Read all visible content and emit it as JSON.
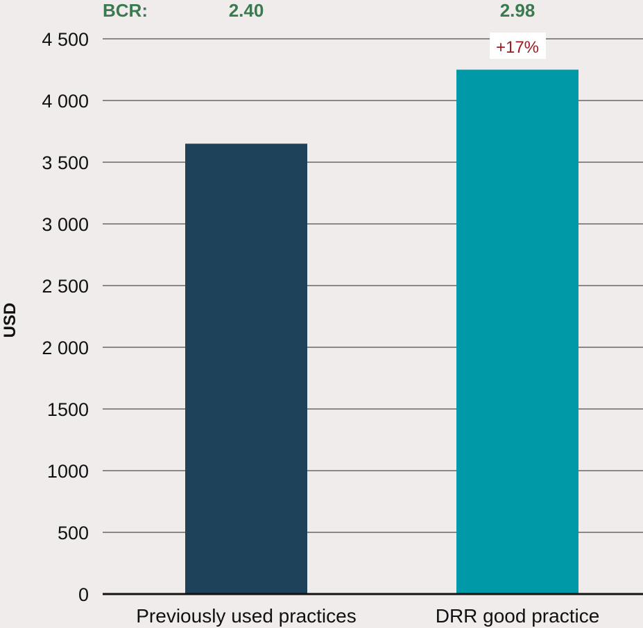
{
  "chart_data": {
    "type": "bar",
    "categories": [
      "Previously used practices",
      "DRR good practice"
    ],
    "values": [
      3650,
      4250
    ],
    "ylabel": "USD",
    "ylim": [
      0,
      4500
    ],
    "yticks": [
      0,
      500,
      1000,
      1500,
      2000,
      2500,
      3000,
      3500,
      4000,
      4500
    ],
    "ytick_labels": [
      "0",
      "500",
      "1000",
      "1500",
      "2 000",
      "2 500",
      "3 000",
      "3 500",
      "4 000",
      "4 500"
    ],
    "grid": true,
    "bcr_label": "BCR:",
    "bcr_values": [
      "2.40",
      "2.98"
    ],
    "annotation": "+17%",
    "bar_colors": [
      "#1d425a",
      "#0099a8"
    ],
    "bcr_color": "#3a7a4e",
    "annotation_color": "#9a1b1f",
    "background": "#f0ecec",
    "grid_color": "#222222"
  }
}
